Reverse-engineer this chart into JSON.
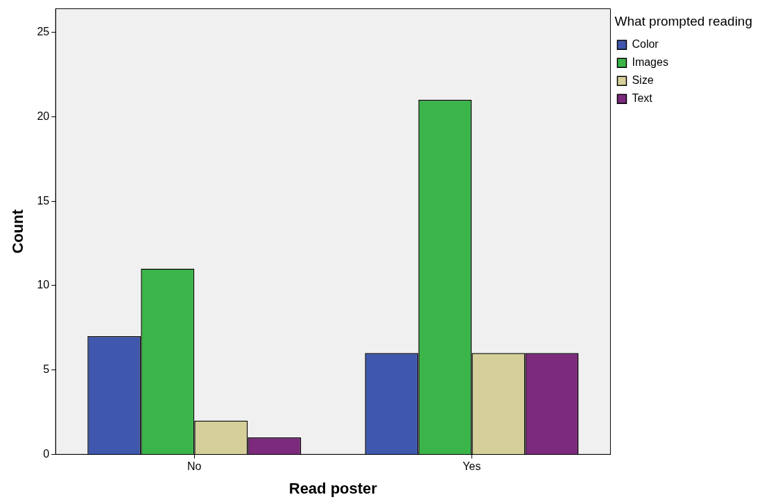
{
  "chart_data": {
    "type": "bar",
    "xlabel": "Read poster",
    "ylabel": "Count",
    "legend_title": "What prompted reading",
    "categories": [
      "No",
      "Yes"
    ],
    "series": [
      {
        "name": "Color",
        "color": "#3f58ad",
        "values": [
          7,
          6
        ]
      },
      {
        "name": "Images",
        "color": "#3bb54a",
        "values": [
          11,
          21
        ]
      },
      {
        "name": "Size",
        "color": "#d5d099",
        "values": [
          2,
          6
        ]
      },
      {
        "name": "Text",
        "color": "#7b2a7c",
        "values": [
          1,
          6
        ]
      }
    ],
    "ylim": [
      0,
      26.4
    ],
    "yticks": [
      0,
      5,
      10,
      15,
      20,
      25
    ],
    "grid": false,
    "legend": "top right"
  }
}
